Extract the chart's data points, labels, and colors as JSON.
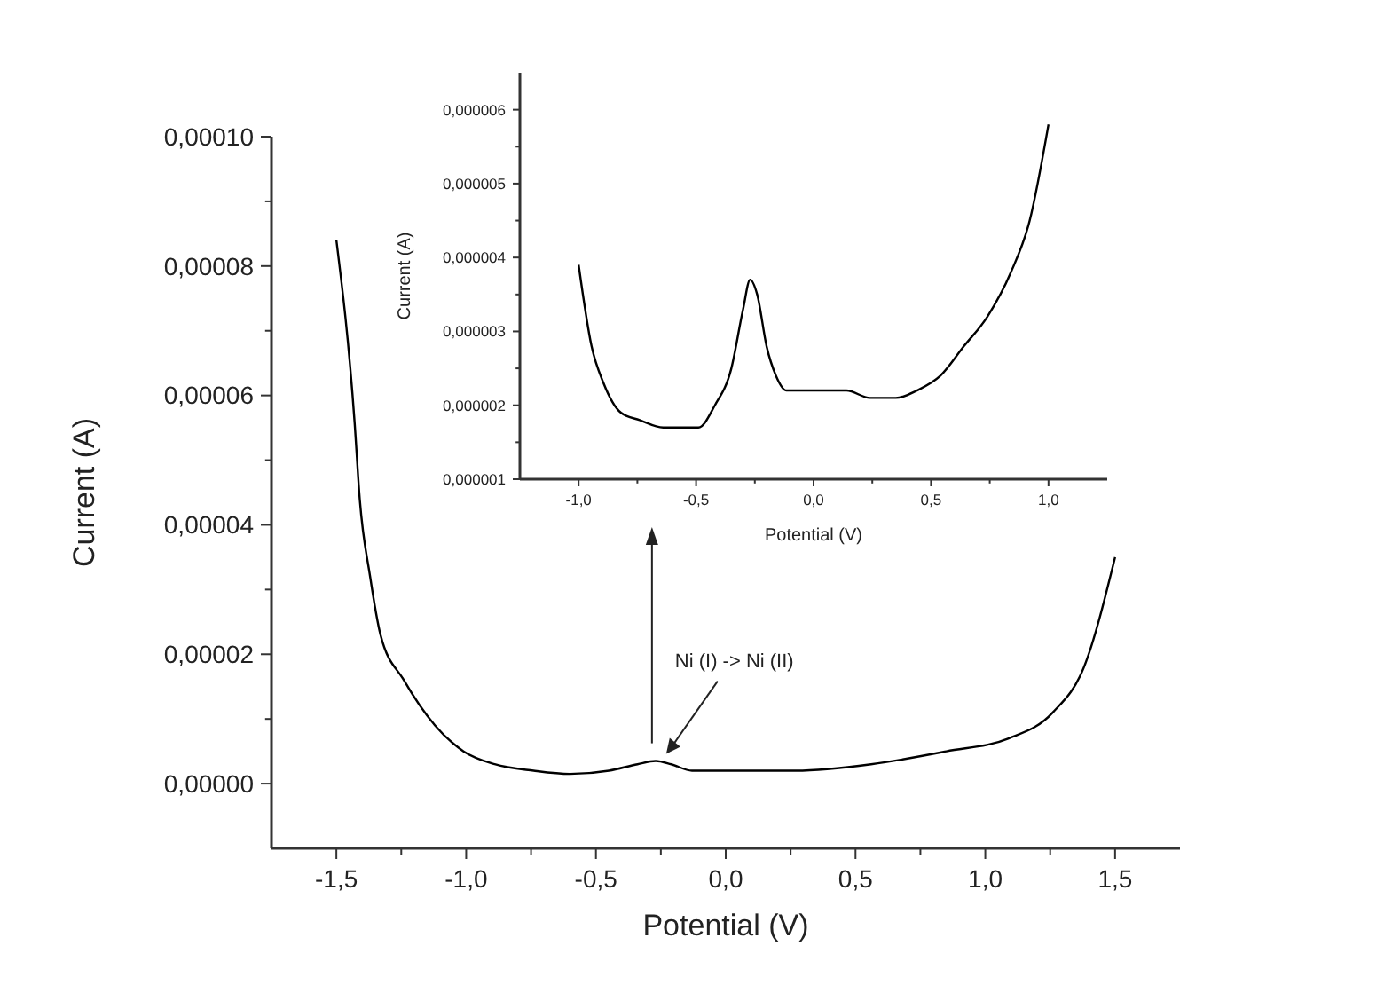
{
  "chart_data": [
    {
      "type": "line",
      "xlabel": "Potential (V)",
      "ylabel": "Current (A)",
      "xlim": [
        -1.75,
        1.75
      ],
      "ylim": [
        -1e-05,
        0.0001
      ],
      "xticks": [
        {
          "value": -1.5,
          "label": "-1,5"
        },
        {
          "value": -1.25,
          "label": null
        },
        {
          "value": -1,
          "label": "-1,0"
        },
        {
          "value": -0.75,
          "label": null
        },
        {
          "value": -0.5,
          "label": "-0,5"
        },
        {
          "value": -0.25,
          "label": null
        },
        {
          "value": 0,
          "label": "0,0"
        },
        {
          "value": 0.25,
          "label": null
        },
        {
          "value": 0.5,
          "label": "0,5"
        },
        {
          "value": 0.75,
          "label": null
        },
        {
          "value": 1,
          "label": "1,0"
        },
        {
          "value": 1.25,
          "label": null
        },
        {
          "value": 1.5,
          "label": "1,5"
        }
      ],
      "yticks": [
        {
          "value": 0,
          "label": "0,00000"
        },
        {
          "value": 1e-05,
          "label": null
        },
        {
          "value": 2e-05,
          "label": "0,00002"
        },
        {
          "value": 3e-05,
          "label": null
        },
        {
          "value": 4e-05,
          "label": "0,00004"
        },
        {
          "value": 5e-05,
          "label": null
        },
        {
          "value": 6e-05,
          "label": "0,00006"
        },
        {
          "value": 7e-05,
          "label": null
        },
        {
          "value": 8e-05,
          "label": "0,00008"
        },
        {
          "value": 9e-05,
          "label": null
        },
        {
          "value": 0.0001,
          "label": "0,00010"
        }
      ],
      "annotations": [
        {
          "text": "Ni (I) -> Ni (II)",
          "x": -0.25,
          "y": 3.5e-06
        }
      ],
      "series": [
        {
          "color": "#000000",
          "x": [
            -1.5,
            -1.43,
            -1.41,
            -1.37,
            -1.33,
            -1.24,
            -1.12,
            -1.01,
            -0.89,
            -0.74,
            -0.6,
            -0.45,
            -0.34,
            -0.27,
            -0.21,
            -0.13,
            0.0,
            0.27,
            0.56,
            0.85,
            1.09,
            1.26,
            1.38,
            1.5
          ],
          "values": [
            8.4e-05,
            5.6e-05,
            4.4e-05,
            3.2e-05,
            2.3e-05,
            1.6e-05,
            9e-06,
            5e-06,
            3e-06,
            2e-06,
            1.5e-06,
            2e-06,
            3e-06,
            3.5e-06,
            3e-06,
            2e-06,
            2e-06,
            2e-06,
            3e-06,
            5e-06,
            7e-06,
            1.1e-05,
            1.8e-05,
            3.5e-05
          ]
        }
      ]
    },
    {
      "type": "line",
      "xlabel": "Potential (V)",
      "ylabel": "Current (A)",
      "xlim": [
        -1.25,
        1.25
      ],
      "ylim": [
        1e-06,
        6.5e-06
      ],
      "xticks": [
        {
          "value": -1,
          "label": "-1,0"
        },
        {
          "value": -0.75,
          "label": null
        },
        {
          "value": -0.5,
          "label": "-0,5"
        },
        {
          "value": -0.25,
          "label": null
        },
        {
          "value": 0,
          "label": "0,0"
        },
        {
          "value": 0.25,
          "label": null
        },
        {
          "value": 0.5,
          "label": "0,5"
        },
        {
          "value": 0.75,
          "label": null
        },
        {
          "value": 1,
          "label": "1,0"
        }
      ],
      "yticks": [
        {
          "value": 1e-06,
          "label": "0,000001"
        },
        {
          "value": 1.5e-06,
          "label": null
        },
        {
          "value": 2e-06,
          "label": "0,000002"
        },
        {
          "value": 2.5e-06,
          "label": null
        },
        {
          "value": 3e-06,
          "label": "0,000003"
        },
        {
          "value": 3.5e-06,
          "label": null
        },
        {
          "value": 4e-06,
          "label": "0,000004"
        },
        {
          "value": 4.5e-06,
          "label": null
        },
        {
          "value": 5e-06,
          "label": "0,000005"
        },
        {
          "value": 5.5e-06,
          "label": null
        },
        {
          "value": 6e-06,
          "label": "0,000006"
        }
      ],
      "series": [
        {
          "color": "#000000",
          "x": [
            -1.0,
            -0.945,
            -0.894,
            -0.82,
            -0.74,
            -0.64,
            -0.555,
            -0.49,
            -0.42,
            -0.35,
            -0.3,
            -0.27,
            -0.24,
            -0.2,
            -0.16,
            -0.115,
            0.0,
            0.14,
            0.24,
            0.35,
            0.44,
            0.54,
            0.64,
            0.74,
            0.84,
            0.92,
            1.0
          ],
          "values": [
            3.9e-06,
            2.8e-06,
            2.3e-06,
            1.9e-06,
            1.8e-06,
            1.7e-06,
            1.7e-06,
            1.7e-06,
            2e-06,
            2.5e-06,
            3.3e-06,
            3.7e-06,
            3.5e-06,
            2.8e-06,
            2.4e-06,
            2.2e-06,
            2.2e-06,
            2.2e-06,
            2.1e-06,
            2.1e-06,
            2.2e-06,
            2.4e-06,
            2.8e-06,
            3.2e-06,
            3.8e-06,
            4.5e-06,
            5.8e-06
          ]
        }
      ]
    }
  ]
}
